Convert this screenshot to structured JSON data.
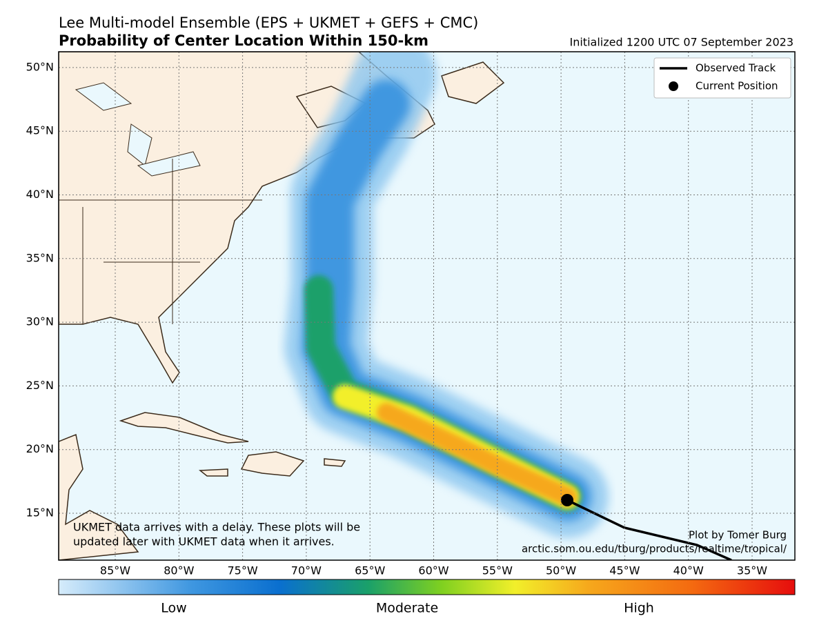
{
  "header": {
    "title": "Lee Multi-model Ensemble (EPS + UKMET + GEFS + CMC)",
    "subtitle": "Probability of Center Location Within 150-km",
    "initialized": "Initialized 1200 UTC 07 September 2023"
  },
  "map": {
    "lat_ticks": [
      {
        "value": 15,
        "label": "15°N"
      },
      {
        "value": 20,
        "label": "20°N"
      },
      {
        "value": 25,
        "label": "25°N"
      },
      {
        "value": 30,
        "label": "30°N"
      },
      {
        "value": 35,
        "label": "35°N"
      },
      {
        "value": 40,
        "label": "40°N"
      },
      {
        "value": 45,
        "label": "45°N"
      },
      {
        "value": 50,
        "label": "50°N"
      }
    ],
    "lon_ticks": [
      {
        "value": -85,
        "label": "85°W"
      },
      {
        "value": -80,
        "label": "80°W"
      },
      {
        "value": -75,
        "label": "75°W"
      },
      {
        "value": -70,
        "label": "70°W"
      },
      {
        "value": -65,
        "label": "65°W"
      },
      {
        "value": -60,
        "label": "60°W"
      },
      {
        "value": -55,
        "label": "55°W"
      },
      {
        "value": -50,
        "label": "50°W"
      },
      {
        "value": -45,
        "label": "45°W"
      },
      {
        "value": -40,
        "label": "40°W"
      },
      {
        "value": -35,
        "label": "35°W"
      }
    ],
    "legend": [
      "Observed Track",
      "Current Position"
    ],
    "note": [
      "UKMET data arrives with a delay. These plots will be",
      "updated later with UKMET data when it arrives."
    ],
    "credit": [
      "Plot by Tomer Burg",
      "arctic.som.ou.edu/tburg/products/realtime/tropical/"
    ]
  },
  "colorbar": {
    "labels": [
      "Low",
      "Moderate",
      "High"
    ]
  }
}
